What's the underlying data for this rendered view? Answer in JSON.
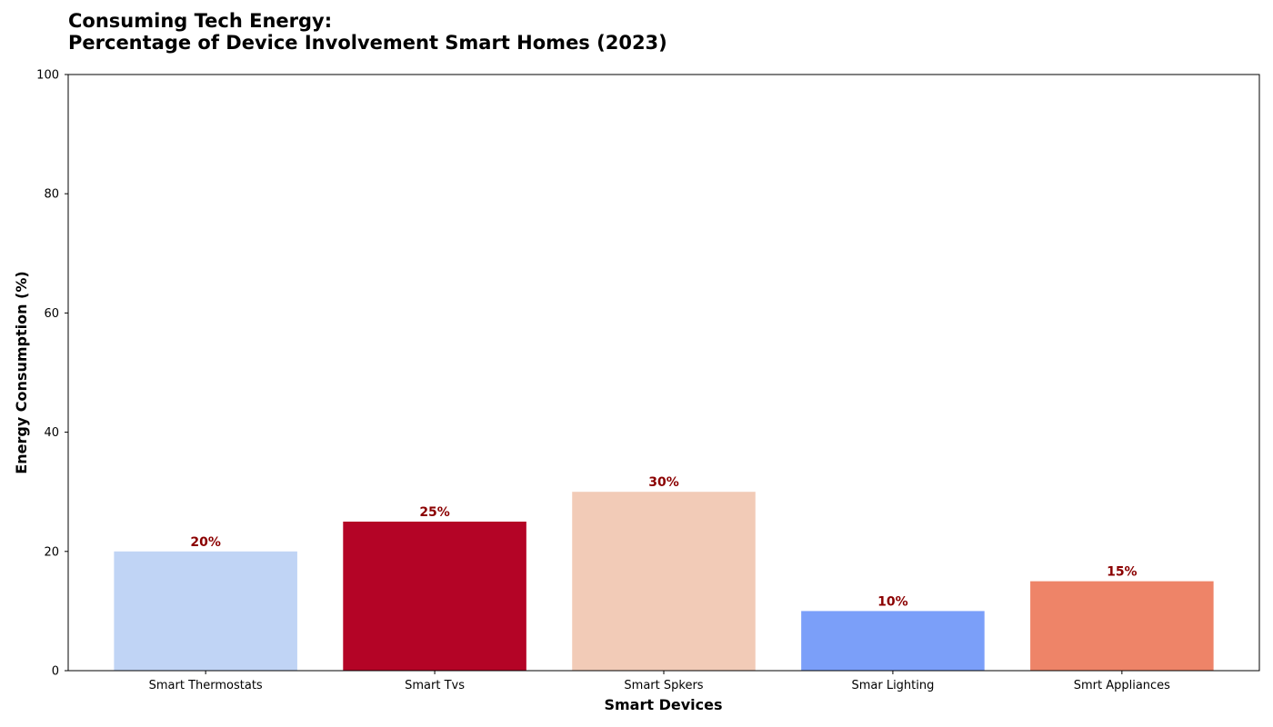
{
  "chart_data": {
    "type": "bar",
    "title_lines": [
      "Consuming Tech Energy:",
      "Percentage of Device Involvement Smart Homes (2023)"
    ],
    "xlabel": "Smart Devices",
    "ylabel": "Energy Consumption (%)",
    "categories": [
      "Smart Thermostats",
      "Smart Tvs",
      "Smart Spkers",
      "Smar Lighting",
      "Smrt Appliances"
    ],
    "values": [
      20,
      25,
      30,
      10,
      15
    ],
    "data_labels": [
      "20%",
      "25%",
      "30%",
      "10%",
      "15%"
    ],
    "colors": [
      "#c0d4f5",
      "#b40426",
      "#f2cbb7",
      "#7b9ff9",
      "#ee8468"
    ],
    "label_color": "#8b0000",
    "ylim": [
      0,
      100
    ],
    "yticks": [
      0,
      20,
      40,
      60,
      80,
      100
    ],
    "grid": false,
    "legend": "none"
  }
}
